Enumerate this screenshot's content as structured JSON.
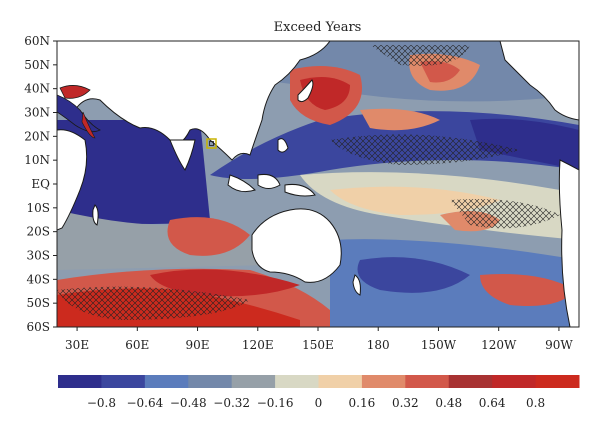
{
  "title": "Exceed Years",
  "map": {
    "lat_labels": [
      "60N",
      "50N",
      "40N",
      "30N",
      "20N",
      "10N",
      "EQ",
      "10S",
      "20S",
      "30S",
      "40S",
      "50S",
      "60S"
    ],
    "lon_labels": [
      "30E",
      "60E",
      "90E",
      "120E",
      "150E",
      "180",
      "150W",
      "120W",
      "90W"
    ],
    "lon_values": [
      30,
      60,
      90,
      120,
      150,
      180,
      210,
      240,
      270
    ],
    "lon_range": [
      20,
      280
    ],
    "lat_range": [
      -60,
      60
    ],
    "colors": {
      "land": "#ffffff",
      "coast": "#1a1a1a",
      "hatch": "#222222",
      "marker": "#c8b400"
    }
  },
  "colorbar": {
    "bins": [
      {
        "color": "#2e2e8c"
      },
      {
        "color": "#3b469e"
      },
      {
        "color": "#5b7cbc"
      },
      {
        "color": "#7388aa"
      },
      {
        "color": "#96a0a8"
      },
      {
        "color": "#d8d8c4"
      },
      {
        "color": "#f0d0a8"
      },
      {
        "color": "#e08a6a"
      },
      {
        "color": "#d2584a"
      },
      {
        "color": "#a83232"
      },
      {
        "color": "#c02828"
      },
      {
        "color": "#cc2a1e"
      }
    ],
    "labels": [
      "−0.8",
      "−0.64",
      "−0.48",
      "−0.32",
      "−0.16",
      "0",
      "0.16",
      "0.32",
      "0.48",
      "0.64",
      "0.8"
    ]
  }
}
